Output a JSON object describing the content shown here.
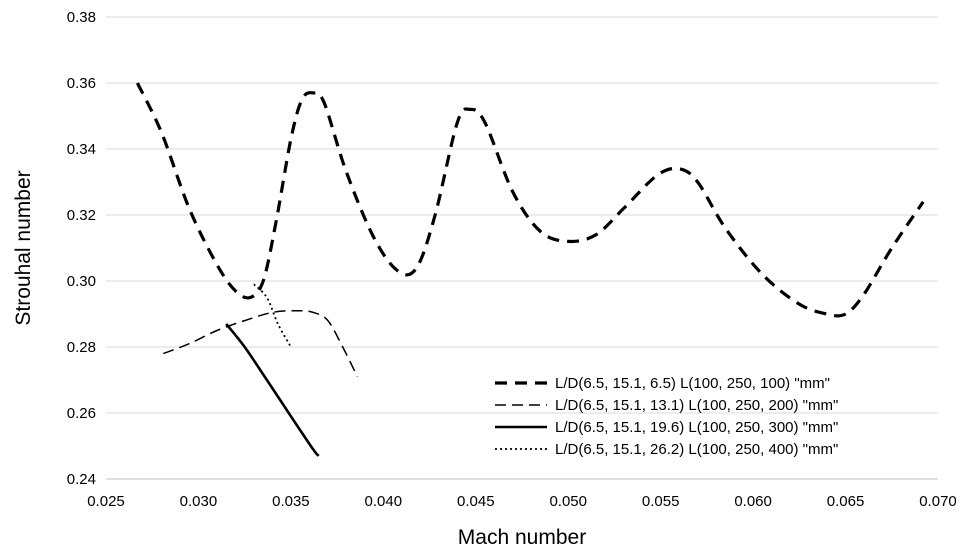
{
  "chart_data": {
    "type": "line",
    "title": "",
    "xlabel": "Mach number",
    "ylabel": "Strouhal number",
    "xlim": [
      0.025,
      0.07
    ],
    "ylim": [
      0.24,
      0.38
    ],
    "x_ticks": [
      "0.025",
      "0.030",
      "0.035",
      "0.040",
      "0.045",
      "0.050",
      "0.055",
      "0.060",
      "0.065",
      "0.070"
    ],
    "y_ticks": [
      "0.24",
      "0.26",
      "0.28",
      "0.30",
      "0.32",
      "0.34",
      "0.36",
      "0.38"
    ],
    "grid": "horizontal",
    "legend_position": "bottom-right",
    "series": [
      {
        "name": "L/D(6.5, 15.1, 6.5)  L(100, 250, 100) \"mm\"",
        "style": "dashed-heavy",
        "points": [
          [
            0.0267,
            0.36
          ],
          [
            0.028,
            0.345
          ],
          [
            0.0295,
            0.322
          ],
          [
            0.031,
            0.305
          ],
          [
            0.032,
            0.297
          ],
          [
            0.0328,
            0.295
          ],
          [
            0.0335,
            0.3
          ],
          [
            0.0342,
            0.318
          ],
          [
            0.035,
            0.343
          ],
          [
            0.0356,
            0.355
          ],
          [
            0.0362,
            0.357
          ],
          [
            0.0368,
            0.354
          ],
          [
            0.038,
            0.333
          ],
          [
            0.0395,
            0.313
          ],
          [
            0.0408,
            0.303
          ],
          [
            0.0418,
            0.304
          ],
          [
            0.0428,
            0.32
          ],
          [
            0.044,
            0.348
          ],
          [
            0.0447,
            0.352
          ],
          [
            0.0455,
            0.348
          ],
          [
            0.047,
            0.327
          ],
          [
            0.0485,
            0.315
          ],
          [
            0.05,
            0.312
          ],
          [
            0.0515,
            0.314
          ],
          [
            0.053,
            0.322
          ],
          [
            0.0548,
            0.332
          ],
          [
            0.056,
            0.334
          ],
          [
            0.057,
            0.33
          ],
          [
            0.0585,
            0.316
          ],
          [
            0.0605,
            0.302
          ],
          [
            0.0625,
            0.293
          ],
          [
            0.064,
            0.29
          ],
          [
            0.065,
            0.29
          ],
          [
            0.066,
            0.296
          ],
          [
            0.0675,
            0.31
          ],
          [
            0.0692,
            0.324
          ]
        ]
      },
      {
        "name": "L/D(6.5, 15.1, 13.1) L(100, 250, 200) \"mm\"",
        "style": "dashed-thin",
        "points": [
          [
            0.0281,
            0.278
          ],
          [
            0.0295,
            0.281
          ],
          [
            0.031,
            0.285
          ],
          [
            0.0325,
            0.288
          ],
          [
            0.034,
            0.2905
          ],
          [
            0.0353,
            0.291
          ],
          [
            0.0362,
            0.2905
          ],
          [
            0.037,
            0.288
          ],
          [
            0.0378,
            0.28
          ],
          [
            0.0386,
            0.271
          ]
        ]
      },
      {
        "name": "L/D(6.5, 15.1, 19.6) L(100, 250, 300) \"mm\"",
        "style": "solid",
        "points": [
          [
            0.0315,
            0.287
          ],
          [
            0.0325,
            0.28
          ],
          [
            0.0337,
            0.27
          ],
          [
            0.035,
            0.259
          ],
          [
            0.0362,
            0.249
          ],
          [
            0.0365,
            0.247
          ]
        ]
      },
      {
        "name": "L/D(6.5, 15.1, 26.2) L(100, 250, 400) \"mm\"",
        "style": "dotted",
        "points": [
          [
            0.033,
            0.299
          ],
          [
            0.0337,
            0.295
          ],
          [
            0.0343,
            0.287
          ],
          [
            0.035,
            0.28
          ]
        ]
      }
    ]
  }
}
